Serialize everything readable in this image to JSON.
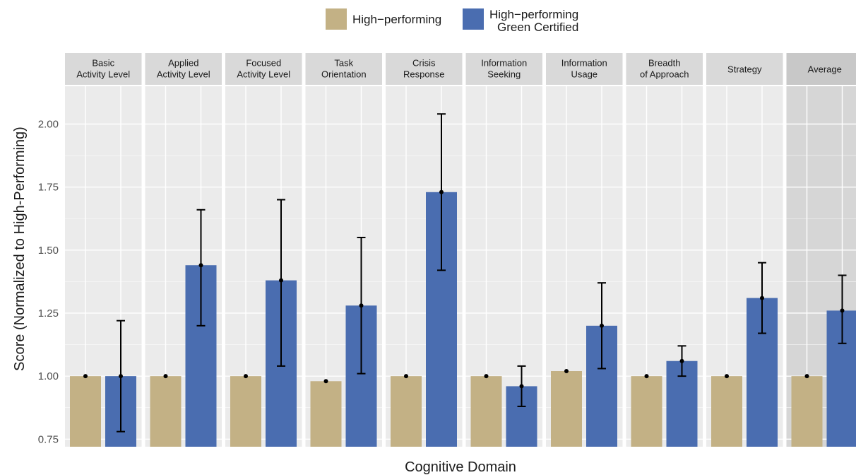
{
  "chart_data": {
    "type": "bar",
    "xlabel": "Cognitive Domain",
    "ylabel": "Score (Normalized to High-Performing)",
    "ylim": [
      0.72,
      2.15
    ],
    "yticks": [
      "0.75",
      "1.00",
      "1.25",
      "1.50",
      "1.75",
      "2.00"
    ],
    "grid": true,
    "legend_position": "top",
    "categories": [
      [
        "Basic",
        "Activity Level"
      ],
      [
        "Applied",
        "Activity Level"
      ],
      [
        "Focused",
        "Activity Level"
      ],
      [
        "Task",
        "Orientation"
      ],
      [
        "Crisis",
        "Response"
      ],
      [
        "Information",
        "Seeking"
      ],
      [
        "Information",
        "Usage"
      ],
      [
        "Breadth",
        "of Approach"
      ],
      [
        "Strategy"
      ],
      [
        "Average"
      ]
    ],
    "series": [
      {
        "name": "High−performing",
        "color": "#c3b185",
        "values": [
          1.0,
          1.0,
          1.0,
          0.98,
          1.0,
          1.0,
          1.02,
          1.0,
          1.0,
          1.0
        ],
        "err_low": [
          1.0,
          1.0,
          1.0,
          0.98,
          1.0,
          1.0,
          1.02,
          1.0,
          1.0,
          1.0
        ],
        "err_high": [
          1.0,
          1.0,
          1.0,
          0.98,
          1.0,
          1.0,
          1.02,
          1.0,
          1.0,
          1.0
        ]
      },
      {
        "name": "High−performing Green Certified",
        "name_lines": [
          "High−performing",
          "Green Certified"
        ],
        "color": "#4a6db0",
        "values": [
          1.0,
          1.44,
          1.38,
          1.28,
          1.73,
          0.96,
          1.2,
          1.06,
          1.31,
          1.26
        ],
        "err_low": [
          0.78,
          1.2,
          1.04,
          1.01,
          1.42,
          0.88,
          1.03,
          1.0,
          1.17,
          1.13
        ],
        "err_high": [
          1.22,
          1.66,
          1.7,
          1.55,
          2.04,
          1.04,
          1.37,
          1.12,
          1.45,
          1.4
        ]
      }
    ],
    "colors": {
      "panel_bg": "#ebebeb",
      "average_panel_bg": "#d6d6d6",
      "strip_bg": "#d9d9d9",
      "average_strip_bg": "#c8c8c8",
      "grid": "#ffffff"
    }
  }
}
